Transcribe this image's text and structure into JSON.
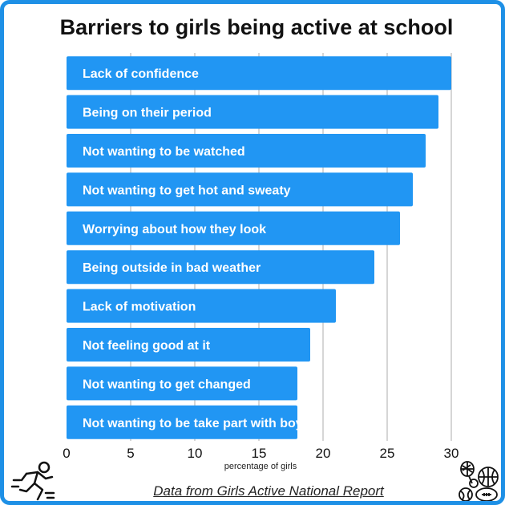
{
  "chart_data": {
    "type": "bar",
    "orientation": "horizontal",
    "title": "Barriers to girls being active at school",
    "xlabel": "percentage of girls",
    "ylabel": "",
    "categories": [
      "Lack of confidence",
      "Being on their period",
      "Not wanting to be watched",
      "Not wanting to get hot and sweaty",
      "Worrying about how they look",
      "Being outside in bad weather",
      "Lack of motivation",
      "Not feeling good at it",
      "Not wanting to get changed",
      "Not wanting to be take part with boys"
    ],
    "values": [
      30,
      29,
      28,
      27,
      26,
      24,
      21,
      19,
      18,
      18
    ],
    "xlim": [
      0,
      30
    ],
    "xticks": [
      "0",
      "5",
      "10",
      "15",
      "20",
      "25",
      "30"
    ],
    "grid": "vertical",
    "bar_color": "#2196f3",
    "label_placement": "inside-bar"
  },
  "source": "Data from Girls Active National Report",
  "frame_color": "#1e90e6",
  "icons": [
    "running-person-icon",
    "sports-balls-icon"
  ]
}
